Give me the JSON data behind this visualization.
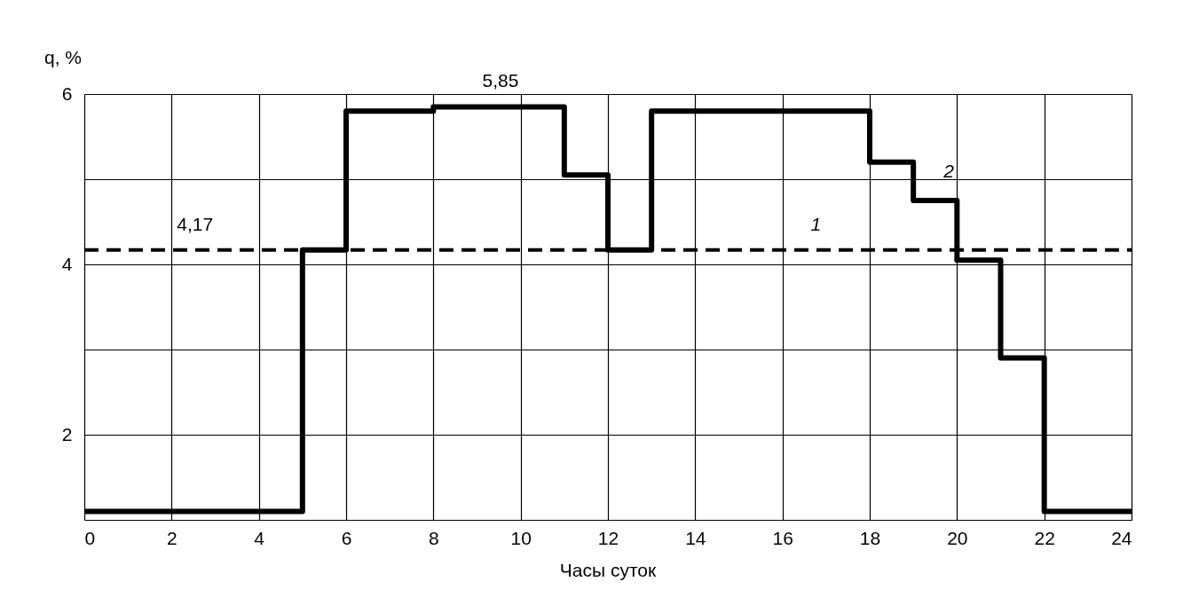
{
  "chart_data": {
    "type": "step",
    "xlabel": "Часы суток",
    "ylabel": "q, %",
    "x": [
      0,
      5,
      6,
      8,
      11,
      12,
      13,
      18,
      19,
      20,
      21,
      22,
      24
    ],
    "series": [
      {
        "name": "1",
        "type": "line",
        "x": [
          0,
          24
        ],
        "line_style": "dashed",
        "color": "#000000",
        "values": [
          4.17,
          4.17
        ]
      },
      {
        "name": "2",
        "color": "#000000",
        "values": [
          1.1,
          4.17,
          5.8,
          5.85,
          5.05,
          4.17,
          5.8,
          5.2,
          4.75,
          4.05,
          2.9,
          1.1,
          1.1
        ]
      }
    ],
    "xlim": [
      0,
      24
    ],
    "xticks": [
      0,
      2,
      4,
      6,
      8,
      10,
      12,
      14,
      16,
      18,
      20,
      22,
      24
    ],
    "ylim": [
      1,
      6
    ],
    "yticks": [
      {
        "value": 1,
        "label": null
      },
      2,
      {
        "value": 3,
        "label": null
      },
      4,
      {
        "value": 5,
        "label": null
      },
      6
    ],
    "annotations": [
      {
        "text": "5,85",
        "x": 9,
        "y": 5.85
      },
      {
        "text": "4,17",
        "x": 2,
        "y": 4.17
      }
    ],
    "grid": true,
    "line_style": "solid",
    "marker": "none",
    "legend": false
  }
}
